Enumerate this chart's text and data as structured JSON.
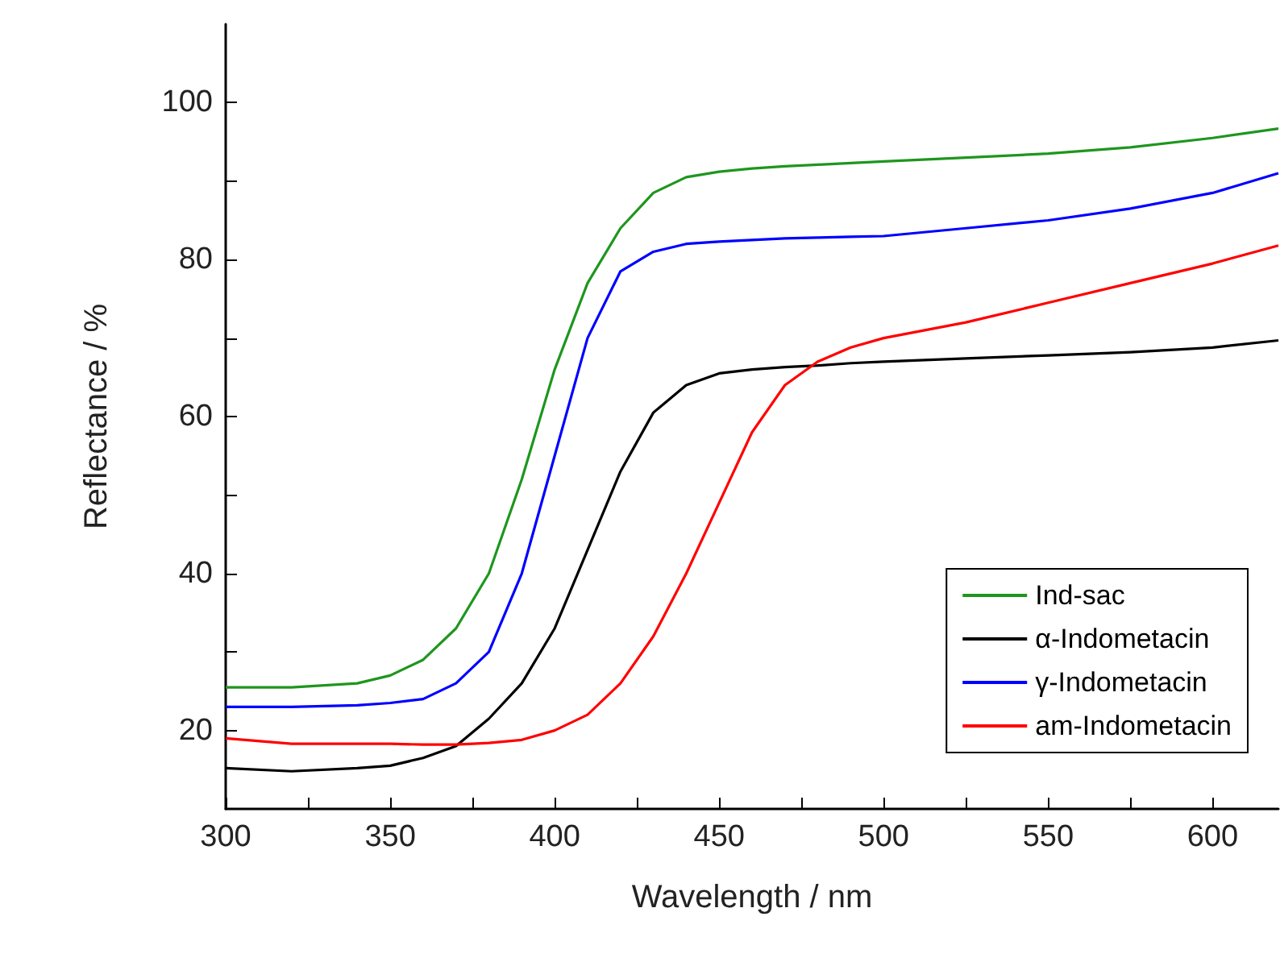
{
  "chart_data": {
    "type": "line",
    "xlabel": "Wavelength / nm",
    "ylabel": "Reflectance / %",
    "xlim": [
      300,
      620
    ],
    "xticks": [
      300,
      {
        "value": 325,
        "label": null
      },
      350,
      {
        "value": 375,
        "label": null
      },
      400,
      {
        "value": 425,
        "label": null
      },
      450,
      {
        "value": 475,
        "label": null
      },
      500,
      {
        "value": 525,
        "label": null
      },
      550,
      {
        "value": 575,
        "label": null
      },
      600
    ],
    "ylim": [
      10,
      110
    ],
    "yticks": [
      20,
      {
        "value": 30,
        "label": null
      },
      40,
      {
        "value": 50,
        "label": null
      },
      60,
      {
        "value": 70,
        "label": null
      },
      80,
      {
        "value": 90,
        "label": null
      },
      100
    ],
    "x": [
      300,
      320,
      340,
      350,
      360,
      370,
      380,
      390,
      400,
      410,
      420,
      430,
      440,
      450,
      460,
      470,
      480,
      490,
      500,
      525,
      550,
      575,
      600,
      620
    ],
    "series": [
      {
        "name": "Ind-sac",
        "color": "#1e961e",
        "values": [
          25.5,
          25.5,
          26,
          27,
          29,
          33,
          40,
          52,
          66,
          77,
          84,
          88.5,
          90.5,
          91.2,
          91.6,
          91.9,
          92.1,
          92.3,
          92.5,
          93,
          93.5,
          94.3,
          95.5,
          96.7
        ]
      },
      {
        "name": "α-Indometacin",
        "color": "#000000",
        "values": [
          15.2,
          14.8,
          15.2,
          15.5,
          16.5,
          18,
          21.5,
          26,
          33,
          43,
          53,
          60.5,
          64,
          65.5,
          66,
          66.3,
          66.5,
          66.8,
          67,
          67.4,
          67.8,
          68.2,
          68.8,
          69.7
        ]
      },
      {
        "name": "γ-Indometacin",
        "color": "#0000ff",
        "values": [
          23,
          23,
          23.2,
          23.5,
          24,
          26,
          30,
          40,
          55,
          70,
          78.5,
          81,
          82,
          82.3,
          82.5,
          82.7,
          82.8,
          82.9,
          83,
          84,
          85,
          86.5,
          88.5,
          91
        ]
      },
      {
        "name": "am-Indometacin",
        "color": "#ff0000",
        "values": [
          19,
          18.3,
          18.3,
          18.3,
          18.2,
          18.2,
          18.4,
          18.8,
          20,
          22,
          26,
          32,
          40,
          49,
          58,
          64,
          67,
          68.8,
          70,
          72,
          74.5,
          77,
          79.5,
          81.8
        ]
      }
    ],
    "legend": "bottom right",
    "grid": false,
    "marker": "none",
    "line_style": "solid"
  }
}
